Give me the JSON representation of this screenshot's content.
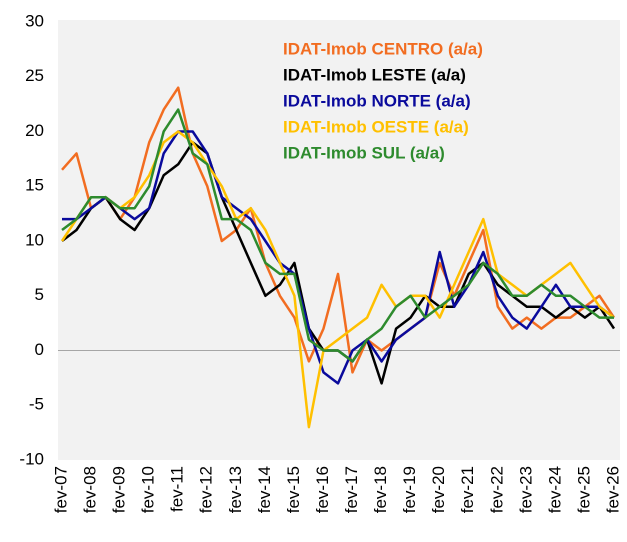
{
  "chart_data": {
    "type": "line",
    "categories": [
      "fev-07",
      null,
      "fev-08",
      null,
      "fev-09",
      null,
      "fev-10",
      null,
      "fev-11",
      null,
      "fev-12",
      null,
      "fev-13",
      null,
      "fev-14",
      null,
      "fev-15",
      null,
      "fev-16",
      null,
      "fev-17",
      null,
      "fev-18",
      null,
      "fev-19",
      null,
      "fev-20",
      null,
      "fev-21",
      null,
      "fev-22",
      null,
      "fev-23",
      null,
      "fev-24",
      null,
      "fev-25",
      null,
      "fev-26"
    ],
    "series": [
      {
        "name": "IDAT-Imob CENTRO (a/a)",
        "color": "#f26d21",
        "values": [
          16.5,
          18,
          13,
          14,
          12,
          14,
          19,
          22,
          24,
          18,
          15,
          10,
          11,
          13,
          8,
          5,
          3,
          -1,
          2,
          7,
          -2,
          1,
          0,
          1,
          2,
          3,
          8,
          5,
          8,
          11,
          4,
          2,
          3,
          2,
          3,
          3,
          4,
          5,
          3
        ]
      },
      {
        "name": "IDAT-Imob LESTE (a/a)",
        "color": "#000000",
        "values": [
          10,
          11,
          13,
          14,
          12,
          11,
          13,
          16,
          17,
          19,
          18,
          14,
          11,
          8,
          5,
          6,
          8,
          2,
          0,
          0,
          -1,
          1,
          -3,
          2,
          3,
          5,
          4,
          4,
          7,
          8,
          6,
          5,
          4,
          4,
          3,
          4,
          3,
          4,
          2
        ]
      },
      {
        "name": "IDAT-Imob NORTE (a/a)",
        "color": "#0a0a9c",
        "values": [
          12,
          12,
          13,
          14,
          13,
          12,
          13,
          18,
          20,
          20,
          18,
          14,
          13,
          12,
          10,
          8,
          7,
          2,
          -2,
          -3,
          0,
          1,
          -1,
          1,
          2,
          3,
          9,
          4,
          6,
          9,
          5,
          3,
          2,
          4,
          6,
          4,
          4,
          4,
          3
        ]
      },
      {
        "name": "IDAT-Imob OESTE (a/a)",
        "color": "#ffc000",
        "values": [
          10,
          12,
          14,
          14,
          13,
          14,
          16,
          19,
          20,
          19,
          17,
          15,
          12,
          13,
          11,
          8,
          5,
          -7,
          0,
          1,
          2,
          3,
          6,
          4,
          5,
          5,
          3,
          6,
          9,
          12,
          7,
          6,
          5,
          6,
          7,
          8,
          6,
          4,
          3
        ]
      },
      {
        "name": "IDAT-Imob SUL (a/a)",
        "color": "#2e8b2e",
        "values": [
          11,
          12,
          14,
          14,
          13,
          13,
          15,
          20,
          22,
          18,
          17,
          12,
          12,
          11,
          8,
          7,
          7,
          1,
          0,
          0,
          -1,
          1,
          2,
          4,
          5,
          3,
          4,
          5,
          6,
          8,
          7,
          5,
          5,
          6,
          5,
          5,
          4,
          3,
          3
        ]
      }
    ],
    "ylim": [
      -10,
      30
    ],
    "yticks": [
      -10,
      -5,
      0,
      5,
      10,
      15,
      20,
      25,
      30
    ]
  }
}
